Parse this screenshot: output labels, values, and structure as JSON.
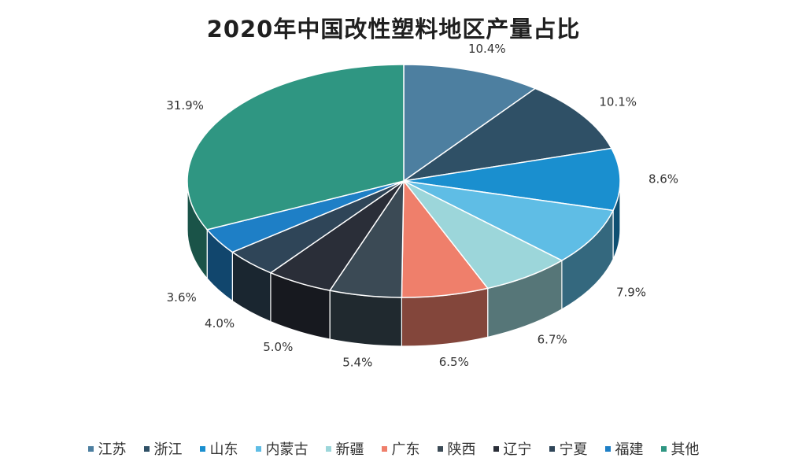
{
  "chart_data": {
    "type": "pie",
    "title": "2020年中国改性塑料地区产量占比",
    "unit": "%",
    "slices": [
      {
        "name": "江苏",
        "value": 10.4,
        "label": "10.4%",
        "color": "#4d7fa0"
      },
      {
        "name": "浙江",
        "value": 10.1,
        "label": "10.1%",
        "color": "#2f5066"
      },
      {
        "name": "山东",
        "value": 8.6,
        "label": "8.6%",
        "color": "#1a8fcf"
      },
      {
        "name": "内蒙古",
        "value": 7.9,
        "label": "7.9%",
        "color": "#5fbde5"
      },
      {
        "name": "新疆",
        "value": 6.7,
        "label": "6.7%",
        "color": "#9cd6da"
      },
      {
        "name": "广东",
        "value": 6.5,
        "label": "6.5%",
        "color": "#ef7f6b"
      },
      {
        "name": "陕西",
        "value": 5.4,
        "label": "5.4%",
        "color": "#3b4a55"
      },
      {
        "name": "辽宁",
        "value": 5.0,
        "label": "5.0%",
        "color": "#2a2e38"
      },
      {
        "name": "宁夏",
        "value": 4.0,
        "label": "4.0%",
        "color": "#2f4558"
      },
      {
        "name": "福建",
        "value": 3.6,
        "label": "3.6%",
        "color": "#1e7fc6"
      },
      {
        "name": "其他",
        "value": 31.9,
        "label": "31.9%",
        "color": "#2f9682"
      }
    ],
    "legend_position": "bottom"
  }
}
